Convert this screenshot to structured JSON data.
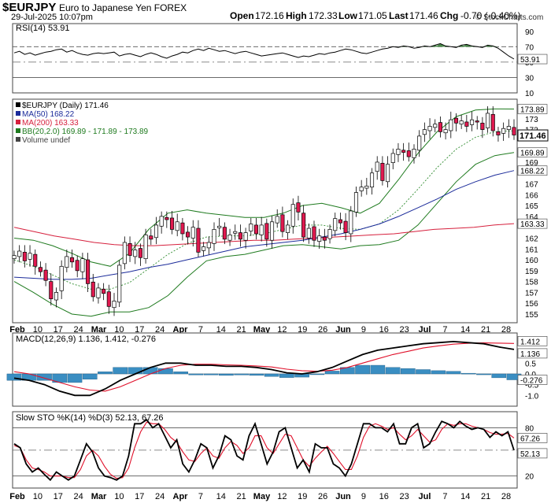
{
  "header": {
    "symbol": "$EURJPY",
    "name": "Euro to Japanese Yen FOREX",
    "datetime": "29-Jul-2025 10:07pm",
    "open_label": "Open",
    "open": "172.16",
    "high_label": "High",
    "high": "172.33",
    "low_label": "Low",
    "low": "171.05",
    "last_label": "Last",
    "last": "171.46",
    "chg_label": "Chg",
    "chg": "-0.70 (-0.40%)",
    "watermark": "© StockCharts.com"
  },
  "colors": {
    "price_up": "#ffffff",
    "price_down": "#e0194f",
    "ma50": "#1b2b9a",
    "ma200": "#d6203d",
    "bb": "#1e7a1e",
    "bb_mid": "#2e8b2e",
    "macd_hist": "#3a8ec2",
    "signal": "#e0102a"
  },
  "chart_data": [
    {
      "type": "line",
      "title": "RSI(14) 53.91",
      "ylim": [
        10,
        100
      ],
      "ticks": [
        "90",
        "70",
        "50",
        "30",
        "10"
      ],
      "guides": [
        70,
        50,
        30
      ],
      "last_label": "53.91",
      "series": [
        {
          "name": "RSI(14)",
          "values": [
            62,
            64,
            60,
            62,
            59,
            61,
            63,
            64,
            66,
            67,
            63,
            65,
            62,
            60,
            59,
            61,
            62,
            61,
            62,
            63,
            58,
            60,
            61,
            59,
            57,
            60,
            62,
            60,
            57,
            55,
            58,
            60,
            63,
            62,
            65,
            67,
            65,
            68,
            66,
            64,
            65,
            63,
            61,
            63,
            64,
            62,
            60,
            58,
            59,
            60,
            61,
            62,
            60,
            58,
            56,
            58,
            57,
            59,
            61,
            60,
            62,
            63,
            65,
            67,
            66,
            64,
            62,
            61,
            63,
            65,
            67,
            68,
            70,
            69,
            71,
            70,
            68,
            69,
            71,
            70,
            72,
            74,
            71,
            70,
            69,
            72,
            73,
            71,
            70,
            69,
            72,
            71,
            68,
            63,
            58,
            54
          ]
        }
      ]
    },
    {
      "type": "candlestick",
      "title": "$EURJPY (Daily) 171.46",
      "legend": [
        {
          "label": "$EURJPY (Daily) 171.46"
        },
        {
          "label": "MA(50) 168.22"
        },
        {
          "label": "MA(200) 163.33"
        },
        {
          "label": "BB(20,2.0) 169.89 - 171.89 - 173.89"
        },
        {
          "label": "Volume undef"
        }
      ],
      "ylim": [
        154.2,
        174.8
      ],
      "y_ticks": [
        "173",
        "172",
        "169",
        "167",
        "166",
        "165",
        "164",
        "162",
        "161",
        "160",
        "159",
        "158",
        "157",
        "156",
        "155"
      ],
      "right_labels": [
        "173.89",
        "171.46",
        "169.89",
        "168.22",
        "163.33"
      ],
      "x_labels": [
        "Feb",
        "10",
        "17",
        "24",
        "Mar",
        "10",
        "17",
        "24",
        "Apr",
        "7",
        "14",
        "21",
        "May",
        "12",
        "19",
        "26",
        "Jun",
        "9",
        "16",
        "23",
        "Jul",
        "7",
        "14",
        "21",
        "28"
      ],
      "close": [
        160.4,
        160.8,
        159.9,
        160.6,
        159.4,
        158.9,
        158.1,
        156.4,
        157.0,
        159.4,
        160.3,
        159.8,
        159.0,
        160.1,
        157.8,
        156.6,
        157.4,
        156.9,
        155.7,
        156.2,
        159.5,
        161.6,
        160.4,
        160.9,
        160.2,
        162.3,
        161.9,
        163.2,
        164.0,
        163.7,
        162.8,
        163.5,
        162.4,
        162.1,
        163.0,
        160.7,
        161.2,
        161.6,
        162.8,
        163.1,
        161.9,
        162.3,
        162.6,
        161.9,
        162.5,
        163.3,
        162.4,
        163.2,
        161.9,
        163.5,
        164.0,
        162.6,
        163.2,
        165.1,
        164.4,
        162.1,
        162.9,
        161.8,
        162.2,
        161.8,
        162.8,
        163.8,
        163.4,
        162.5,
        164.5,
        166.2,
        166.7,
        166.8,
        168.0,
        169.0,
        167.3,
        168.8,
        169.8,
        170.2,
        169.9,
        169.5,
        170.2,
        171.4,
        172.0,
        172.3,
        172.5,
        171.8,
        172.0,
        172.9,
        172.6,
        172.8,
        172.3,
        172.9,
        172.7,
        172.0,
        173.5,
        171.9,
        171.5,
        172.1,
        172.3,
        171.5
      ],
      "series": [
        {
          "name": "MA(50)",
          "values": [
            158.4,
            158.3,
            158.2,
            158.2,
            158.3,
            158.6,
            158.9,
            159.3,
            159.6,
            160.0,
            160.4,
            160.8,
            161.2,
            161.4,
            161.6,
            161.8,
            162.1,
            162.4,
            162.8,
            163.3,
            164.0,
            164.8,
            165.6,
            166.5,
            167.2,
            167.8,
            168.22
          ]
        },
        {
          "name": "MA(200)",
          "values": [
            163.0,
            162.6,
            162.2,
            161.9,
            161.6,
            161.4,
            161.3,
            161.3,
            161.4,
            161.5,
            161.6,
            161.7,
            161.8,
            161.8,
            161.9,
            162.0,
            162.1,
            162.2,
            162.3,
            162.4,
            162.6,
            162.8,
            162.9,
            163.0,
            163.2,
            163.33
          ]
        },
        {
          "name": "BB upper",
          "values": [
            162.0,
            161.8,
            161.3,
            160.6,
            159.8,
            159.4,
            160.6,
            162.8,
            164.3,
            164.6,
            164.3,
            164.1,
            163.9,
            163.9,
            164.3,
            165.0,
            165.2,
            164.8,
            164.3,
            165.2,
            167.4,
            169.8,
            171.8,
            173.2,
            173.8,
            173.9,
            173.89
          ]
        },
        {
          "name": "BB middle",
          "values": [
            160.0,
            159.4,
            158.6,
            157.8,
            157.3,
            157.3,
            157.9,
            159.2,
            160.5,
            161.5,
            162.1,
            162.2,
            162.2,
            162.4,
            162.8,
            163.2,
            163.2,
            162.9,
            162.8,
            163.3,
            164.6,
            166.5,
            168.5,
            170.2,
            171.3,
            171.8,
            171.89
          ]
        },
        {
          "name": "BB lower",
          "values": [
            158.0,
            157.0,
            155.9,
            155.0,
            154.8,
            155.2,
            155.2,
            155.6,
            156.7,
            158.4,
            159.9,
            160.3,
            160.5,
            160.9,
            161.3,
            161.4,
            161.2,
            161.0,
            161.3,
            161.4,
            161.8,
            163.2,
            165.2,
            167.2,
            168.8,
            169.6,
            169.89
          ]
        }
      ]
    },
    {
      "type": "line",
      "title": "MACD(12,26,9) 1.136, 1.412, -0.276",
      "ylim": [
        -1.5,
        1.9
      ],
      "y_ticks": [
        "1.5",
        "1.0",
        "0.5",
        "0.0",
        "-0.5",
        "-1.0"
      ],
      "last_labels": [
        "1.412",
        "1.136",
        "-0.276"
      ],
      "series": [
        {
          "name": "MACD",
          "values": [
            -0.2,
            -0.3,
            -0.5,
            -0.8,
            -1.0,
            -1.0,
            -0.7,
            -0.3,
            0.0,
            0.3,
            0.5,
            0.5,
            0.4,
            0.4,
            0.35,
            0.35,
            0.3,
            0.2,
            0.05,
            0.0,
            0.1,
            0.3,
            0.6,
            0.9,
            1.1,
            1.2,
            1.3,
            1.4,
            1.45,
            1.5,
            1.45,
            1.4,
            1.25,
            1.136
          ]
        },
        {
          "name": "Signal",
          "values": [
            0.1,
            0.0,
            -0.2,
            -0.4,
            -0.6,
            -0.75,
            -0.8,
            -0.6,
            -0.3,
            0.0,
            0.25,
            0.4,
            0.45,
            0.45,
            0.42,
            0.4,
            0.37,
            0.32,
            0.22,
            0.15,
            0.12,
            0.17,
            0.3,
            0.5,
            0.7,
            0.9,
            1.05,
            1.2,
            1.3,
            1.38,
            1.42,
            1.44,
            1.43,
            1.412
          ]
        },
        {
          "name": "Histogram",
          "values": [
            -0.3,
            -0.3,
            -0.3,
            -0.4,
            -0.4,
            -0.25,
            0.1,
            0.3,
            0.3,
            0.3,
            0.25,
            0.1,
            -0.05,
            -0.05,
            -0.07,
            -0.05,
            -0.07,
            -0.12,
            -0.17,
            -0.15,
            -0.02,
            0.13,
            0.3,
            0.4,
            0.4,
            0.3,
            0.25,
            0.2,
            0.15,
            0.12,
            0.03,
            -0.04,
            -0.18,
            -0.276
          ]
        }
      ]
    },
    {
      "type": "line",
      "title": "Slow STO %K(14) %D(3) 52.13, 67.26",
      "ylim": [
        5,
        100
      ],
      "y_ticks": [
        "80",
        "50",
        "20"
      ],
      "guides": [
        80,
        20
      ],
      "last_labels": [
        "67.26",
        "52.13"
      ],
      "series": [
        {
          "name": "%K",
          "values": [
            60,
            55,
            35,
            25,
            30,
            22,
            15,
            25,
            20,
            15,
            20,
            40,
            60,
            50,
            30,
            20,
            18,
            15,
            20,
            45,
            85,
            85,
            90,
            80,
            85,
            70,
            55,
            65,
            35,
            25,
            40,
            60,
            55,
            30,
            45,
            70,
            65,
            45,
            40,
            70,
            85,
            60,
            35,
            50,
            75,
            80,
            55,
            30,
            40,
            25,
            60,
            55,
            55,
            35,
            30,
            20,
            35,
            60,
            85,
            85,
            80,
            80,
            75,
            85,
            60,
            60,
            80,
            85,
            55,
            60,
            75,
            88,
            85,
            80,
            88,
            82,
            78,
            80,
            78,
            68,
            75,
            70,
            75,
            52
          ]
        },
        {
          "name": "%D",
          "values": [
            58,
            55,
            40,
            30,
            28,
            25,
            20,
            20,
            20,
            18,
            18,
            28,
            45,
            52,
            45,
            32,
            22,
            17,
            18,
            30,
            55,
            75,
            87,
            85,
            85,
            78,
            68,
            62,
            50,
            40,
            38,
            48,
            55,
            45,
            42,
            55,
            63,
            58,
            48,
            55,
            70,
            70,
            55,
            48,
            60,
            72,
            70,
            55,
            40,
            32,
            42,
            50,
            57,
            48,
            38,
            28,
            28,
            45,
            68,
            82,
            85,
            82,
            78,
            80,
            72,
            65,
            70,
            78,
            70,
            62,
            65,
            78,
            85,
            83,
            85,
            85,
            82,
            80,
            78,
            74,
            72,
            72,
            73,
            67.26
          ]
        }
      ]
    }
  ]
}
